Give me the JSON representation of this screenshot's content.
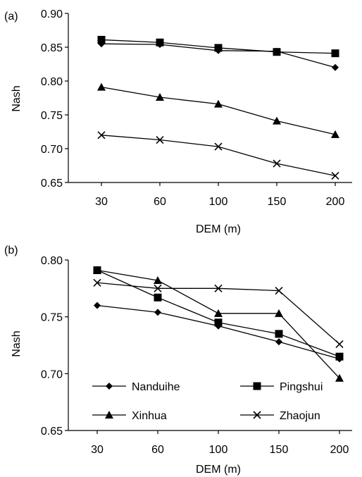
{
  "chart_data": [
    {
      "panel_label": "(a)",
      "type": "line",
      "xlabel": "DEM (m)",
      "ylabel": "Nash",
      "categories": [
        "30",
        "60",
        "100",
        "150",
        "200"
      ],
      "ylim": [
        0.65,
        0.9
      ],
      "yticks": [
        "0.90",
        "0.85",
        "0.80",
        "0.75",
        "0.70",
        "0.65"
      ],
      "grid": false,
      "legend": "none",
      "series": [
        {
          "marker": "diamond",
          "values": [
            0.855,
            0.854,
            0.845,
            0.844,
            0.82
          ]
        },
        {
          "marker": "square",
          "values": [
            0.861,
            0.857,
            0.849,
            0.843,
            0.841
          ]
        },
        {
          "marker": "triangle",
          "values": [
            0.791,
            0.776,
            0.766,
            0.741,
            0.721
          ]
        },
        {
          "marker": "x",
          "values": [
            0.72,
            0.713,
            0.703,
            0.678,
            0.66
          ]
        }
      ]
    },
    {
      "panel_label": "(b)",
      "type": "line",
      "xlabel": "DEM (m)",
      "ylabel": "Nash",
      "categories": [
        "30",
        "60",
        "100",
        "150",
        "200"
      ],
      "ylim": [
        0.65,
        0.8
      ],
      "yticks": [
        "0.80",
        "0.75",
        "0.70",
        "0.65"
      ],
      "grid": false,
      "legend": "inside lower-left, two columns",
      "series": [
        {
          "name": "Nanduihe",
          "marker": "diamond",
          "values": [
            0.76,
            0.754,
            0.742,
            0.728,
            0.713
          ]
        },
        {
          "name": "Pingshui",
          "marker": "square",
          "values": [
            0.791,
            0.767,
            0.745,
            0.735,
            0.715
          ]
        },
        {
          "name": "Xinhua",
          "marker": "triangle",
          "values": [
            0.791,
            0.782,
            0.753,
            0.753,
            0.696
          ]
        },
        {
          "name": "Zhaojun",
          "marker": "x",
          "values": [
            0.78,
            0.775,
            0.775,
            0.773,
            0.726
          ]
        }
      ]
    }
  ]
}
